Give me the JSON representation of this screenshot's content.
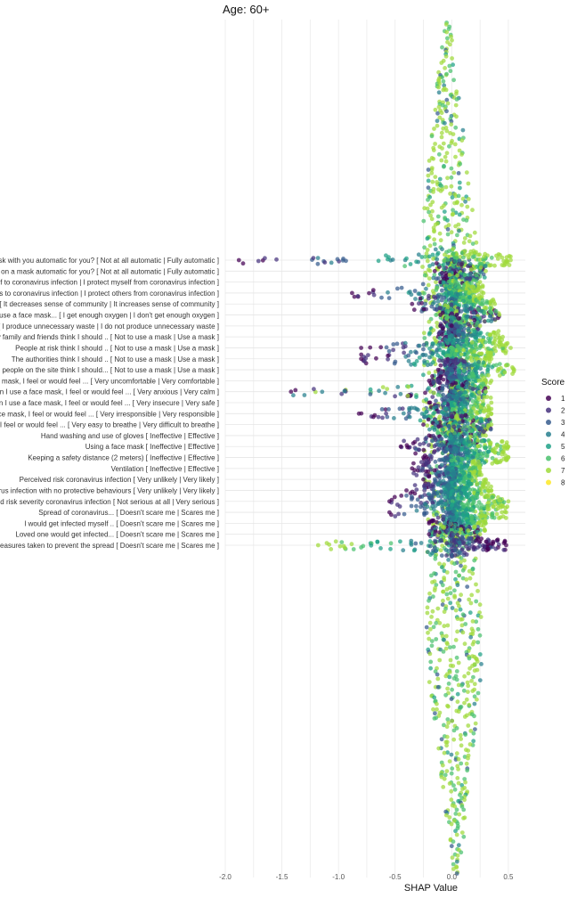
{
  "chart_data": {
    "type": "scatter",
    "title": "Age: 60+",
    "xlabel": "SHAP Value",
    "ylabel": "",
    "xlim": [
      -2.0,
      0.65
    ],
    "x_ticks": [
      -2.0,
      -1.5,
      -1.0,
      -0.5,
      0.0,
      0.5
    ],
    "x_tick_labels": [
      "-2.0",
      "-1.5",
      "-1.0",
      "-0.5",
      "0.0",
      "0.5"
    ],
    "grid": true,
    "legend": {
      "title": "Score",
      "position": "right",
      "entries": [
        "1",
        "2",
        "3",
        "4",
        "5",
        "6",
        "7",
        "8"
      ],
      "colors": [
        "#440154",
        "#46337e",
        "#365c8d",
        "#277f8e",
        "#1fa187",
        "#4ac16d",
        "#9fda3a",
        "#fde725"
      ]
    },
    "features": [
      "Is taking a mask with you automatic for you? [ Not at all automatic | Fully automatic ]",
      "Is putting on a mask automatic for you? [ Not at all automatic | Fully automatic ]",
      "If or when I use a face mask... [ I expose myself to coronavirus infection | I protect myself from coronavirus infection ]",
      "If or when I use a face mask... [ I expose others to coronavirus infection | I protect others from coronavirus infection ]",
      "If or when I use a face mask... [ It decreases sense of community | It increases sense of community ]",
      "If or when I use a face mask... [ I get enough oxygen | I don't get enough oxygen ]",
      "If or when I use a face mask... [ I produce unnecessary waste | I do not produce unnecessary waste ]",
      "My family and friends think I should .. [ Not to use a mask | Use a mask ]",
      "People at risk think I should .. [ Not to use a mask | Use a mask ]",
      "The authorities think I should .. [ Not to use a mask | Use a mask ]",
      "In the indoors spaces I visit, people on the site think I should... [ Not to use a mask | Use a mask ]",
      "When I use a face mask, I feel or would feel ... [ Very uncomfortable | Very comfortable ]",
      "When I use a face mask, I feel or would feel ... [ Very anxious | Very calm ]",
      "When I use a face mask, I feel or would feel ... [ Very insecure | Very safe ]",
      "When I use a face mask, I feel or would feel ... [ Very irresponsible | Very responsible ]",
      "When I use a face mask, I feel or would feel ... [ Very easy to breathe | Very difficult to breathe ]",
      "Hand washing and use of gloves [ Ineffective | Effective ]",
      "Using a face mask [ Ineffective | Effective ]",
      "Keeping a safety distance (2 meters) [ Ineffective | Effective ]",
      "Ventilation [ Ineffective | Effective ]",
      "Perceived risk coronavirus infection [ Very unlikely | Very likely ]",
      "Perceived risk coronavirus infection with no protective behaviours [ Very unlikely | Very likely ]",
      "Perceived risk severity coronavirus infection [ Not serious at all | Very serious ]",
      "Spread of coronavirus... [ Doesn't scare me | Scares me ]",
      "I would get infected myself .. [ Doesn't scare me | Scares me ]",
      "Loved one would get infected... [ Doesn't scare me | Scares me ]",
      "Measures taken to prevent the spread [ Doesn't scare me | Scares me ]"
    ],
    "series": [
      {
        "feature_index": 0,
        "min": -1.88,
        "max": 0.52,
        "low_score_side": "negative"
      },
      {
        "feature_index": 1,
        "min": -0.15,
        "max": 0.3,
        "low_score_side": "mixed"
      },
      {
        "feature_index": 2,
        "min": -0.1,
        "max": 0.25,
        "low_score_side": "mixed"
      },
      {
        "feature_index": 3,
        "min": -0.88,
        "max": 0.28,
        "low_score_side": "negative"
      },
      {
        "feature_index": 4,
        "min": -0.35,
        "max": 0.38,
        "low_score_side": "negative"
      },
      {
        "feature_index": 5,
        "min": -0.1,
        "max": 0.42,
        "low_score_side": "mixed"
      },
      {
        "feature_index": 6,
        "min": -0.1,
        "max": 0.25,
        "low_score_side": "mixed"
      },
      {
        "feature_index": 7,
        "min": -0.12,
        "max": 0.45,
        "low_score_side": "negative"
      },
      {
        "feature_index": 8,
        "min": -0.8,
        "max": 0.52,
        "low_score_side": "negative"
      },
      {
        "feature_index": 9,
        "min": -0.8,
        "max": 0.35,
        "low_score_side": "negative"
      },
      {
        "feature_index": 10,
        "min": -0.12,
        "max": 0.55,
        "low_score_side": "negative"
      },
      {
        "feature_index": 11,
        "min": -0.2,
        "max": 0.35,
        "low_score_side": "negative"
      },
      {
        "feature_index": 12,
        "min": -1.42,
        "max": 0.3,
        "low_score_side": "mixed"
      },
      {
        "feature_index": 13,
        "min": -0.2,
        "max": 0.35,
        "low_score_side": "negative"
      },
      {
        "feature_index": 14,
        "min": -0.82,
        "max": 0.35,
        "low_score_side": "negative"
      },
      {
        "feature_index": 15,
        "min": -0.25,
        "max": 0.35,
        "low_score_side": "mixed"
      },
      {
        "feature_index": 16,
        "min": -0.2,
        "max": 0.3,
        "low_score_side": "mixed"
      },
      {
        "feature_index": 17,
        "min": -0.45,
        "max": 0.5,
        "low_score_side": "negative"
      },
      {
        "feature_index": 18,
        "min": -0.25,
        "max": 0.5,
        "low_score_side": "negative"
      },
      {
        "feature_index": 19,
        "min": -0.35,
        "max": 0.25,
        "low_score_side": "negative"
      },
      {
        "feature_index": 20,
        "min": -0.25,
        "max": 0.3,
        "low_score_side": "negative"
      },
      {
        "feature_index": 21,
        "min": -0.4,
        "max": 0.35,
        "low_score_side": "negative"
      },
      {
        "feature_index": 22,
        "min": -0.55,
        "max": 0.5,
        "low_score_side": "negative"
      },
      {
        "feature_index": 23,
        "min": -0.55,
        "max": 0.48,
        "low_score_side": "negative"
      },
      {
        "feature_index": 24,
        "min": -0.2,
        "max": 0.3,
        "low_score_side": "negative"
      },
      {
        "feature_index": 25,
        "min": -0.2,
        "max": 0.25,
        "low_score_side": "mixed"
      },
      {
        "feature_index": 26,
        "min": -1.18,
        "max": 0.48,
        "low_score_side": "positive"
      }
    ]
  }
}
